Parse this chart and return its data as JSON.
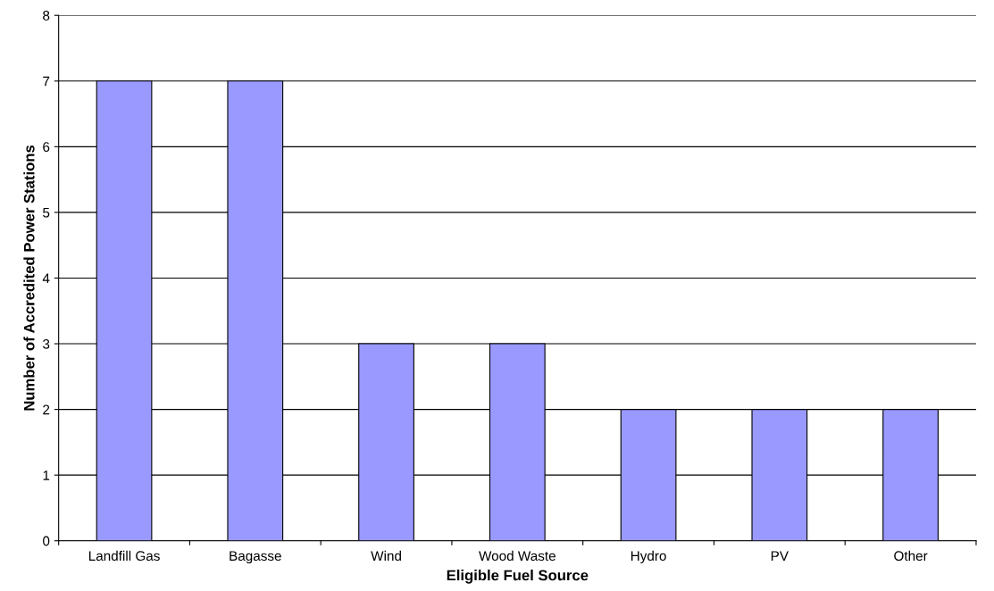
{
  "chart_data": {
    "type": "bar",
    "xlabel": "Eligible Fuel Source",
    "ylabel": "Number of Accredited Power Stations",
    "categories": [
      "Landfill Gas",
      "Bagasse",
      "Wind",
      "Wood Waste",
      "Hydro",
      "PV",
      "Other"
    ],
    "values": [
      7,
      7,
      3,
      3,
      2,
      2,
      2
    ],
    "color": "#9999ff",
    "ylim": [
      0,
      8
    ],
    "yticks": [
      0,
      1,
      2,
      3,
      4,
      5,
      6,
      7,
      8
    ],
    "grid": "y",
    "legend": false
  }
}
